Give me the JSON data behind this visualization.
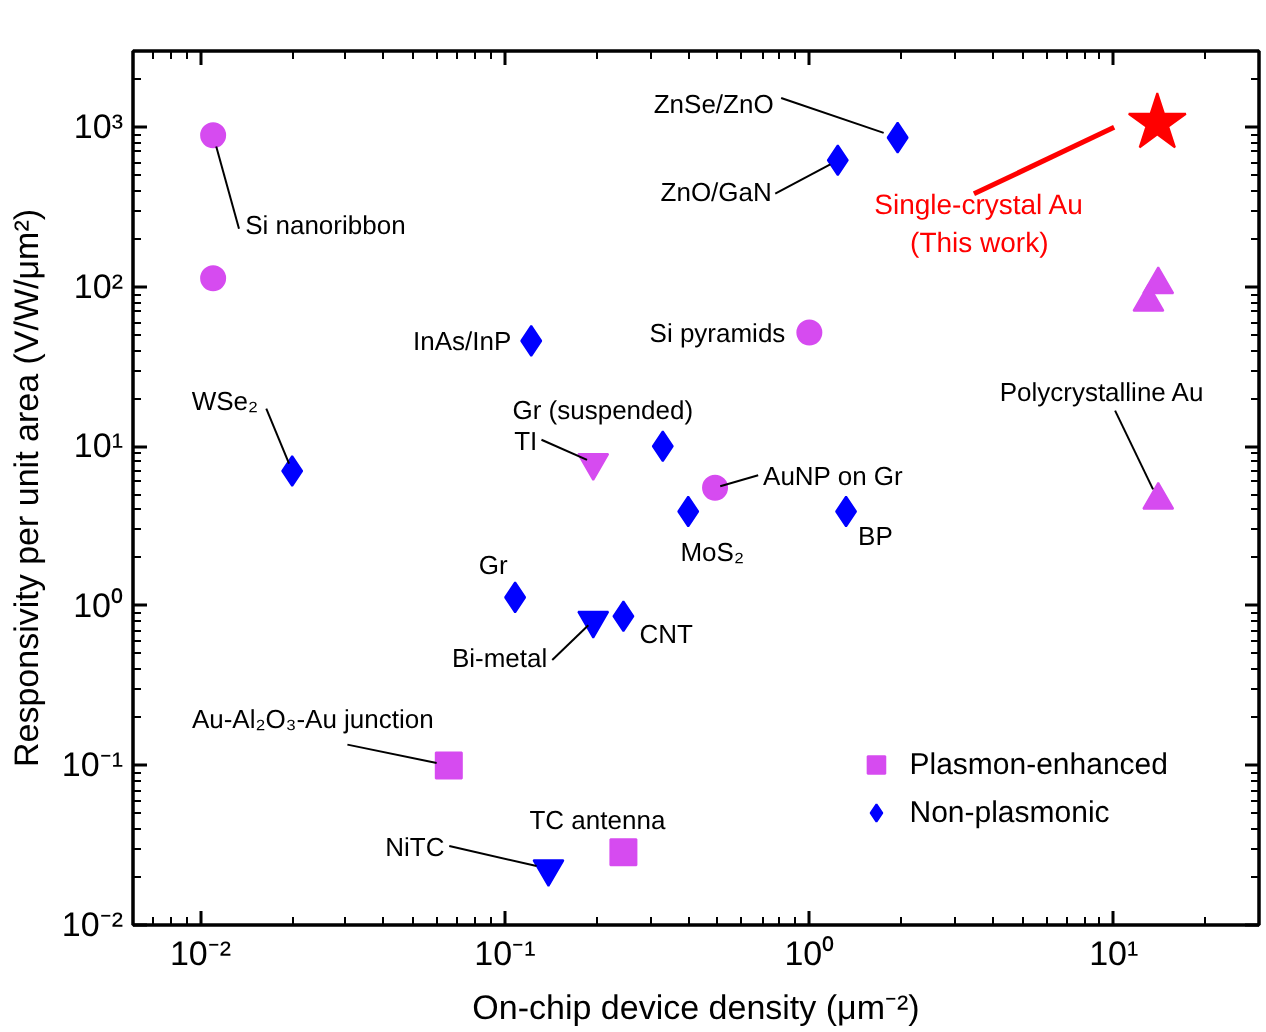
{
  "chart_data": {
    "type": "scatter",
    "xlabel": "On-chip device density (μm⁻²)",
    "ylabel": "Responsivity per unit area (V/W/μm²)",
    "log": "xy",
    "grid": false,
    "legend": "bottom right",
    "xlim": [
      0.006,
      30
    ],
    "ylim": [
      0.01,
      3000
    ],
    "xticks": [
      {
        "value": 0.01,
        "label": "10⁻²"
      },
      {
        "value": 0.1,
        "label": "10⁻¹"
      },
      {
        "value": 1,
        "label": "10⁰"
      },
      {
        "value": 10,
        "label": "10¹"
      }
    ],
    "yticks": [
      {
        "value": 0.01,
        "label": "10⁻²"
      },
      {
        "value": 0.1,
        "label": "10⁻¹"
      },
      {
        "value": 1,
        "label": "10⁰"
      },
      {
        "value": 10,
        "label": "10¹"
      },
      {
        "value": 100,
        "label": "10²"
      },
      {
        "value": 1000,
        "label": "10³"
      }
    ],
    "series": [
      {
        "name": "Plasmon-enhanced",
        "color": "#d64bf0",
        "marker": "square",
        "x": [
          0.0654,
          0.245
        ],
        "values": [
          0.1,
          0.0286
        ]
      },
      {
        "color": "#d64bf0",
        "marker": "circle",
        "x": [
          0.011,
          0.011,
          0.49,
          1.0
        ],
        "values": [
          890,
          113,
          5.5,
          51.6
        ]
      },
      {
        "color": "#d64bf0",
        "marker": "triangle",
        "x": [
          14,
          13,
          14
        ],
        "values": [
          103,
          80,
          4.6
        ]
      },
      {
        "color": "#d64bf0",
        "marker": "triangle",
        "x": [
          0.195
        ],
        "values": [
          7.9
        ]
      },
      {
        "name": "Non-plasmonic",
        "color": "#0000ff",
        "marker": "diamond",
        "x": [
          0.02,
          0.122,
          0.33,
          0.4,
          1.32,
          1.95,
          1.24,
          0.108,
          0.245
        ],
        "values": [
          7.0,
          45.8,
          10,
          3.9,
          3.9,
          860,
          620,
          1.13,
          0.86
        ]
      },
      {
        "color": "#0000ff",
        "marker": "triangle",
        "x": [
          0.195,
          0.139
        ],
        "values": [
          0.81,
          0.0225
        ]
      },
      {
        "name": "Single-crystal Au\n(This work)",
        "color": "#ff0000",
        "marker": "star",
        "x": [
          13.9
        ],
        "values": [
          1060
        ]
      }
    ],
    "annotations": [
      {
        "text": "Si nanoribbon",
        "x": 0.011,
        "y": 890
      },
      {
        "text": "WSe₂",
        "x": 0.02,
        "y": 7.0
      },
      {
        "text": "InAs/InP",
        "x": 0.122,
        "y": 45.8
      },
      {
        "text": "TI",
        "x": 0.195,
        "y": 7.9
      },
      {
        "text": "Gr (suspended)",
        "x": 0.33,
        "y": 10
      },
      {
        "text": "AuNP on Gr",
        "x": 0.49,
        "y": 5.5
      },
      {
        "text": "MoS₂",
        "x": 0.4,
        "y": 3.9
      },
      {
        "text": "BP",
        "x": 1.32,
        "y": 3.9
      },
      {
        "text": "Si pyramids",
        "x": 1.0,
        "y": 51.6
      },
      {
        "text": "ZnSe/ZnO",
        "x": 1.95,
        "y": 860
      },
      {
        "text": "ZnO/GaN",
        "x": 1.24,
        "y": 620
      },
      {
        "text": "Polycrystalline Au",
        "x": 14,
        "y": 4.6
      },
      {
        "text": "Gr",
        "x": 0.108,
        "y": 1.13
      },
      {
        "text": "Bi-metal",
        "x": 0.195,
        "y": 0.81
      },
      {
        "text": "CNT",
        "x": 0.245,
        "y": 0.86
      },
      {
        "text": "Au-Al₂O₃-Au junction",
        "x": 0.0654,
        "y": 0.1
      },
      {
        "text": "NiTC",
        "x": 0.139,
        "y": 0.0225
      },
      {
        "text": "TC antenna",
        "x": 0.245,
        "y": 0.0286
      }
    ]
  }
}
